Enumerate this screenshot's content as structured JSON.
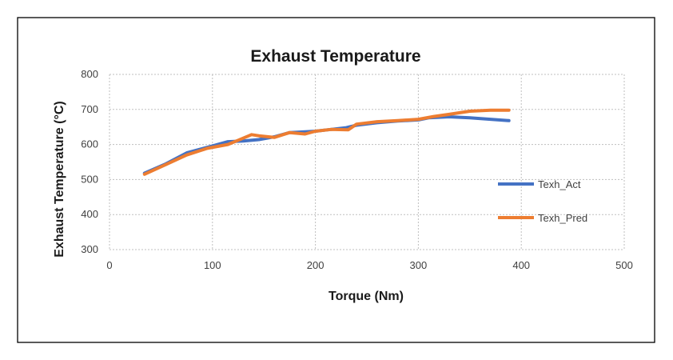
{
  "chart_data": {
    "type": "line",
    "title": "Exhaust Temperature",
    "xlabel": "Torque (Nm)",
    "ylabel": "Exhaust Temperature (°C)",
    "xlim": [
      0,
      500
    ],
    "ylim": [
      300,
      800
    ],
    "xticks": [
      0,
      100,
      200,
      300,
      400,
      500
    ],
    "yticks": [
      300,
      400,
      500,
      600,
      700,
      800
    ],
    "grid": true,
    "legend_position": "right",
    "series": [
      {
        "name": "Texh_Act",
        "color": "#4472C4",
        "x": [
          34,
          55,
          75,
          100,
          115,
          130,
          145,
          160,
          175,
          190,
          200,
          215,
          230,
          240,
          260,
          280,
          300,
          310,
          330,
          350,
          370,
          388
        ],
        "y": [
          518,
          545,
          576,
          596,
          608,
          610,
          614,
          622,
          634,
          636,
          638,
          643,
          648,
          655,
          662,
          667,
          670,
          676,
          679,
          676,
          672,
          668
        ]
      },
      {
        "name": "Texh_Pred",
        "color": "#ED7D31",
        "x": [
          34,
          55,
          75,
          95,
          115,
          125,
          138,
          145,
          160,
          175,
          190,
          200,
          215,
          232,
          240,
          260,
          280,
          300,
          315,
          330,
          350,
          370,
          388
        ],
        "y": [
          515,
          543,
          570,
          589,
          600,
          612,
          628,
          625,
          620,
          634,
          630,
          638,
          643,
          642,
          658,
          665,
          668,
          672,
          680,
          686,
          695,
          698,
          698
        ]
      }
    ]
  }
}
